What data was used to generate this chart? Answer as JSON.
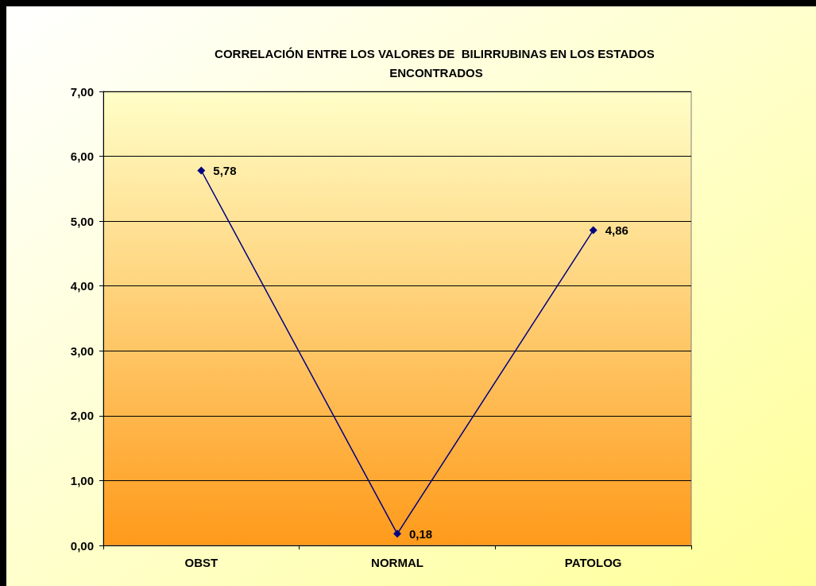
{
  "chart_data": {
    "type": "line",
    "title": "CORRELACIÓN ENTRE LOS VALORES DE  BILIRRUBINAS EN LOS ESTADOS ENCONTRADOS",
    "categories": [
      "OBST",
      "NORMAL",
      "PATOLOG"
    ],
    "series": [
      {
        "color": "#000080",
        "values": [
          5.78,
          0.18,
          4.86
        ],
        "value_labels": [
          "5,78",
          "0,18",
          "4,86"
        ]
      }
    ],
    "ylim": [
      0,
      7
    ],
    "yticks": [
      {
        "value": 0,
        "label": "0,00"
      },
      {
        "value": 1,
        "label": "1,00"
      },
      {
        "value": 2,
        "label": "2,00"
      },
      {
        "value": 3,
        "label": "3,00"
      },
      {
        "value": 4,
        "label": "4,00"
      },
      {
        "value": 5,
        "label": "5,00"
      },
      {
        "value": 6,
        "label": "6,00"
      },
      {
        "value": 7,
        "label": "7,00"
      }
    ],
    "grid": "y",
    "marker": "diamond",
    "line_style": "solid"
  }
}
